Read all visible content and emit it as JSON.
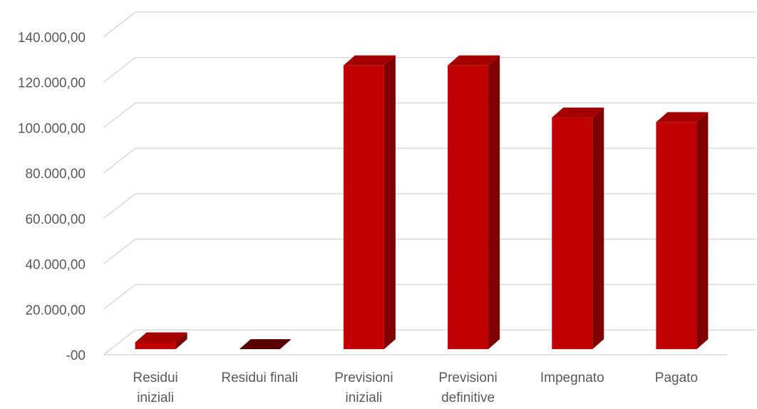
{
  "chart_data": {
    "type": "bar",
    "categories": [
      [
        "Residui",
        "iniziali"
      ],
      [
        "Residui finali"
      ],
      [
        "Previsioni",
        "iniziali"
      ],
      [
        "Previsioni",
        "definitive"
      ],
      [
        "Impegnato"
      ],
      [
        "Pagato"
      ]
    ],
    "values": [
      3000,
      0,
      125000,
      125000,
      102000,
      100000
    ],
    "y_tick_labels": [
      "-00",
      "20.000,00",
      "40.000,00",
      "60.000,00",
      "80.000,00",
      "100.000,00",
      "120.000,00",
      "140.000,00"
    ],
    "ylim": [
      0,
      140000
    ],
    "title": "",
    "xlabel": "",
    "ylabel": "",
    "grid": true,
    "style": "3d-column",
    "colors": {
      "bar_front": "#c00000",
      "bar_side": "#7f0000",
      "bar_top": "#a50000",
      "zero_top": "#5a0000",
      "grid": "#d9d9d9",
      "text": "#595959"
    }
  }
}
